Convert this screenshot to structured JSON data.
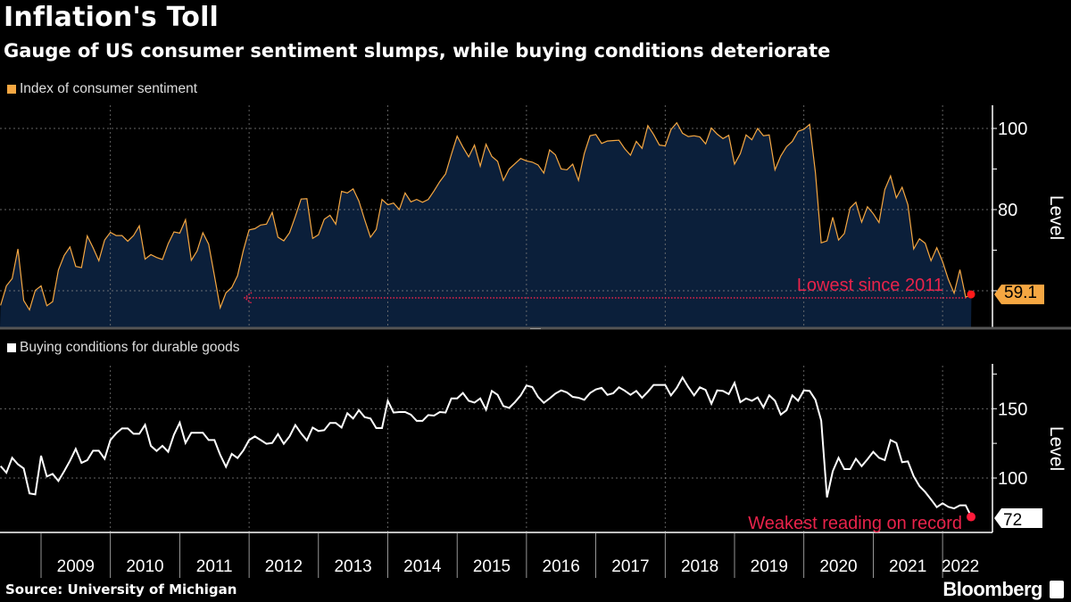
{
  "header": {
    "title": "Inflation's Toll",
    "subtitle": "Gauge of US consumer sentiment slumps, while buying conditions deteriorate"
  },
  "footer": {
    "source": "Source: University of Michigan",
    "logo": "Bloomberg"
  },
  "colors": {
    "sentiment_line": "#f5a742",
    "sentiment_fill": "#0b1f3a",
    "durables_line": "#ffffff",
    "annotation": "#e8234a",
    "background": "#000000"
  },
  "chart_data": [
    {
      "type": "area",
      "legend": "Index of consumer sentiment",
      "ylabel": "Level",
      "ylim": [
        55,
        105
      ],
      "yticks": [
        60,
        70,
        80,
        90,
        100
      ],
      "ytick_labels": [
        "",
        "",
        "80",
        "",
        "100"
      ],
      "grid": true,
      "x_start": "2008-06",
      "x_end": "2022-06",
      "frequency": "monthly",
      "last_value_label": "59.1",
      "annotation": "Lowest since 2011",
      "values": [
        56.4,
        61.2,
        63.0,
        70.3,
        57.6,
        55.3,
        60.1,
        61.2,
        56.3,
        57.3,
        65.1,
        68.7,
        70.8,
        66.0,
        65.7,
        73.5,
        70.6,
        67.4,
        72.5,
        74.4,
        73.6,
        73.6,
        72.2,
        73.6,
        76.0,
        67.8,
        68.9,
        68.2,
        67.7,
        71.6,
        74.5,
        74.2,
        77.5,
        67.5,
        69.8,
        74.3,
        71.5,
        63.7,
        55.8,
        59.5,
        60.8,
        63.7,
        69.9,
        75.0,
        75.3,
        76.2,
        76.4,
        79.3,
        73.2,
        72.3,
        74.3,
        78.3,
        82.6,
        82.7,
        72.9,
        73.8,
        77.6,
        78.6,
        76.4,
        84.5,
        84.1,
        85.1,
        82.1,
        77.5,
        73.2,
        75.1,
        82.5,
        81.2,
        81.6,
        80.0,
        84.1,
        81.9,
        82.5,
        81.8,
        82.5,
        84.6,
        86.9,
        88.8,
        93.6,
        98.1,
        95.4,
        93.0,
        95.9,
        90.7,
        96.1,
        93.1,
        91.9,
        87.2,
        90.0,
        91.3,
        92.6,
        92.0,
        91.7,
        91.0,
        89.0,
        94.7,
        93.5,
        90.0,
        89.8,
        91.2,
        87.2,
        93.8,
        98.2,
        98.5,
        96.3,
        96.9,
        97.0,
        97.1,
        95.0,
        93.4,
        96.8,
        95.1,
        100.7,
        98.5,
        95.9,
        95.7,
        99.7,
        101.4,
        98.8,
        98.0,
        98.2,
        97.9,
        96.2,
        100.1,
        98.6,
        97.5,
        98.3,
        91.2,
        93.8,
        98.4,
        97.2,
        100.0,
        98.2,
        98.4,
        89.8,
        93.2,
        95.5,
        96.8,
        99.3,
        99.8,
        101.0,
        89.1,
        71.8,
        72.3,
        78.1,
        72.5,
        74.1,
        80.4,
        81.8,
        76.9,
        80.7,
        79.0,
        76.8,
        84.9,
        88.3,
        82.9,
        85.5,
        81.2,
        70.3,
        72.8,
        71.7,
        67.4,
        70.6,
        67.2,
        62.8,
        59.4,
        65.2,
        58.4,
        59.1
      ]
    },
    {
      "type": "line",
      "legend": "Buying conditions for durable goods",
      "ylabel": "Level",
      "ylim": [
        62,
        179
      ],
      "yticks": [
        100,
        125,
        150,
        175
      ],
      "ytick_labels": [
        "100",
        "",
        "150",
        ""
      ],
      "grid": true,
      "x_start": "2008-06",
      "x_end": "2022-06",
      "frequency": "monthly",
      "xtick_labels": [
        "2009",
        "2010",
        "2011",
        "2012",
        "2013",
        "2014",
        "2015",
        "2016",
        "2017",
        "2018",
        "2019",
        "2020",
        "2021",
        "2022"
      ],
      "last_value_label": "72",
      "annotation": "Weakest reading on record",
      "values": [
        108.6,
        103.9,
        114.6,
        109.9,
        106.9,
        88.9,
        88.2,
        116.1,
        101.1,
        103.0,
        97.9,
        104.9,
        112.4,
        121.0,
        110.9,
        112.9,
        119.7,
        119.7,
        113.9,
        127.4,
        132.2,
        135.8,
        135.8,
        131.9,
        131.9,
        138.4,
        123.2,
        119.5,
        123.2,
        118.9,
        131.3,
        139.9,
        125.3,
        132.6,
        132.6,
        132.6,
        127.4,
        127.4,
        116.7,
        108.1,
        117.4,
        114.4,
        119.9,
        127.4,
        130.0,
        127.4,
        124.7,
        125.3,
        131.7,
        124.7,
        130.0,
        138.2,
        132.2,
        127.2,
        136.4,
        133.9,
        134.5,
        139.7,
        139.7,
        136.4,
        146.7,
        142.9,
        148.9,
        143.9,
        142.9,
        136.0,
        136.0,
        155.7,
        147.2,
        147.6,
        147.6,
        145.7,
        141.2,
        141.2,
        145.4,
        145.0,
        147.6,
        147.2,
        157.4,
        157.4,
        161.3,
        155.7,
        154.4,
        157.4,
        149.3,
        162.8,
        160.0,
        151.9,
        150.6,
        154.7,
        159.6,
        166.7,
        165.6,
        158.5,
        154.2,
        157.4,
        160.9,
        163.2,
        161.7,
        158.5,
        157.9,
        156.4,
        161.3,
        163.9,
        165.0,
        160.0,
        161.1,
        165.4,
        163.0,
        160.0,
        162.8,
        157.9,
        162.2,
        167.1,
        167.1,
        167.1,
        159.6,
        165.0,
        172.5,
        165.6,
        159.6,
        165.4,
        163.5,
        153.6,
        163.2,
        162.8,
        160.5,
        168.6,
        154.7,
        157.4,
        155.7,
        158.1,
        151.0,
        159.6,
        155.7,
        145.7,
        148.9,
        159.6,
        155.7,
        163.2,
        162.8,
        156.4,
        141.4,
        86.1,
        104.9,
        114.6,
        106.4,
        106.4,
        113.9,
        108.6,
        113.5,
        118.9,
        114.6,
        112.9,
        127.4,
        125.3,
        111.4,
        112.0,
        101.3,
        94.2,
        89.9,
        84.6,
        79.0,
        81.8,
        79.2,
        78.1,
        80.3,
        80.3,
        72.0
      ]
    }
  ]
}
